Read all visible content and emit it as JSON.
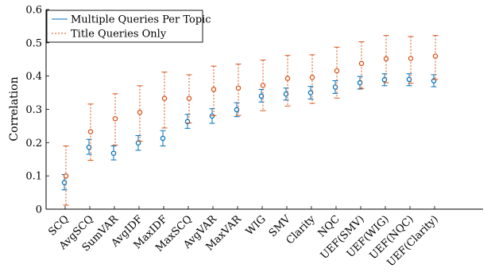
{
  "chart_data": {
    "type": "scatter",
    "xlabel": "",
    "ylabel": "Correlation",
    "ylim": [
      0,
      0.6
    ],
    "yticks": [
      0,
      0.1,
      0.2,
      0.3,
      0.4,
      0.5,
      0.6
    ],
    "ytick_labels": [
      "0",
      "0.1",
      "0.2",
      "0.3",
      "0.4",
      "0.5",
      "0.6"
    ],
    "grid": false,
    "legend": "top-left",
    "categories": [
      "SCQ",
      "AvgSCQ",
      "SumVAR",
      "AvgIDF",
      "MaxIDF",
      "MaxSCQ",
      "AvgVAR",
      "MaxVAR",
      "WIG",
      "SMV",
      "Clarity",
      "NQC",
      "UEF(SMV)",
      "UEF(WIG)",
      "UEF(NQC)",
      "UEF(Clarity)"
    ],
    "series": [
      {
        "name": "Multiple Queries Per Topic",
        "color": "#0072BD",
        "style": "solid",
        "values": [
          0.08,
          0.186,
          0.168,
          0.199,
          0.213,
          0.263,
          0.28,
          0.299,
          0.34,
          0.346,
          0.35,
          0.367,
          0.38,
          0.389,
          0.39,
          0.386
        ],
        "lower": [
          0.058,
          0.165,
          0.148,
          0.177,
          0.19,
          0.243,
          0.258,
          0.278,
          0.322,
          0.328,
          0.331,
          0.348,
          0.361,
          0.371,
          0.371,
          0.368
        ],
        "upper": [
          0.104,
          0.21,
          0.19,
          0.221,
          0.236,
          0.285,
          0.302,
          0.32,
          0.36,
          0.364,
          0.369,
          0.386,
          0.399,
          0.407,
          0.407,
          0.404
        ]
      },
      {
        "name": "Title Queries Only",
        "color": "#D95319",
        "style": "dashed",
        "values": [
          0.1,
          0.233,
          0.272,
          0.291,
          0.333,
          0.333,
          0.36,
          0.364,
          0.372,
          0.393,
          0.396,
          0.416,
          0.438,
          0.452,
          0.453,
          0.46
        ],
        "lower": [
          0.012,
          0.147,
          0.193,
          0.204,
          0.244,
          0.259,
          0.281,
          0.282,
          0.296,
          0.31,
          0.318,
          0.334,
          0.363,
          0.38,
          0.378,
          0.39
        ],
        "upper": [
          0.19,
          0.316,
          0.347,
          0.371,
          0.412,
          0.404,
          0.43,
          0.436,
          0.448,
          0.462,
          0.464,
          0.487,
          0.503,
          0.522,
          0.519,
          0.522
        ]
      }
    ]
  }
}
